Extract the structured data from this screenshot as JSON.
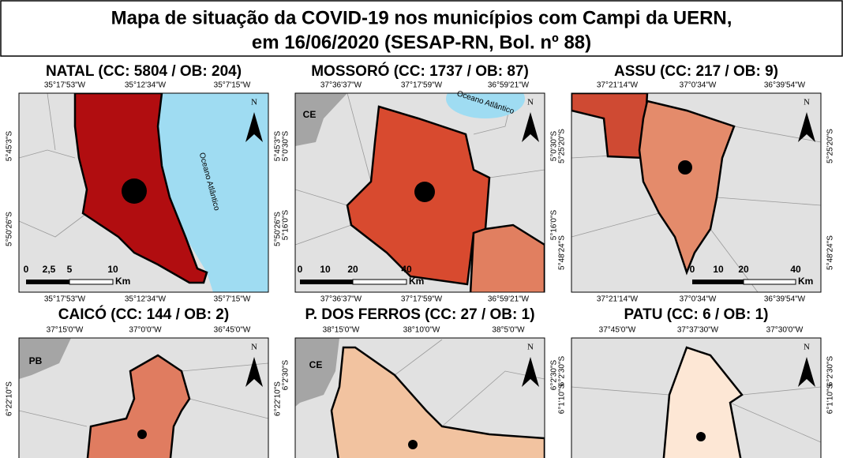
{
  "title": [
    "Mapa de situação da COVID-19 nos municípios com Campi da UERN,",
    "em 16/06/2020 (SESAP-RN, Bol. nº 88)"
  ],
  "north": "N",
  "scale_unit": "Km",
  "panels": [
    {
      "title": "NATAL (CC: 5804 / OB: 204)",
      "x_ticks": [
        "35°17'53\"W",
        "35°12'34\"W",
        "35°7'15\"W"
      ],
      "y_ticks": [
        "5°45'3\"S",
        "5°50'26\"S"
      ],
      "scale": [
        "0",
        "2,5",
        "5",
        "10"
      ],
      "labels": [
        "Oceano Atlântico"
      ]
    },
    {
      "title": "MOSSORÓ (CC: 1737 / OB: 87)",
      "x_ticks": [
        "37°36'37\"W",
        "37°17'59\"W",
        "36°59'21\"W"
      ],
      "y_ticks": [
        "5°0'30\"S",
        "5°16'0\"S"
      ],
      "scale": [
        "0",
        "10",
        "20",
        "40"
      ],
      "labels": [
        "CE",
        "Oceano Atlântico"
      ]
    },
    {
      "title": "ASSU (CC: 217 / OB: 9)",
      "x_ticks": [
        "37°21'14\"W",
        "37°0'34\"W",
        "36°39'54\"W"
      ],
      "y_ticks": [
        "5°25'20\"S",
        "5°48'24\"S"
      ],
      "scale": [
        "0",
        "10",
        "20",
        "40"
      ],
      "labels": []
    },
    {
      "title": "CAICÓ (CC: 144 / OB: 2)",
      "x_ticks": [
        "37°15'0\"W",
        "37°0'0\"W",
        "36°45'0\"W"
      ],
      "y_ticks": [
        "6°22'10\"S"
      ],
      "scale": [],
      "labels": [
        "PB"
      ]
    },
    {
      "title": "P. DOS FERROS (CC: 27 / OB: 1)",
      "x_ticks": [
        "38°15'0\"W",
        "38°10'0\"W",
        "38°5'0\"W"
      ],
      "y_ticks": [
        "6°2'30\"S"
      ],
      "scale": [],
      "labels": [
        "CE"
      ]
    },
    {
      "title": "PATU (CC: 6 / OB: 1)",
      "x_ticks": [
        "37°45'0\"W",
        "37°37'30\"W",
        "37°30'0\"W"
      ],
      "y_ticks": [
        "6°2'30\"S",
        "6°1'10\"S"
      ],
      "scale": [],
      "labels": []
    }
  ]
}
